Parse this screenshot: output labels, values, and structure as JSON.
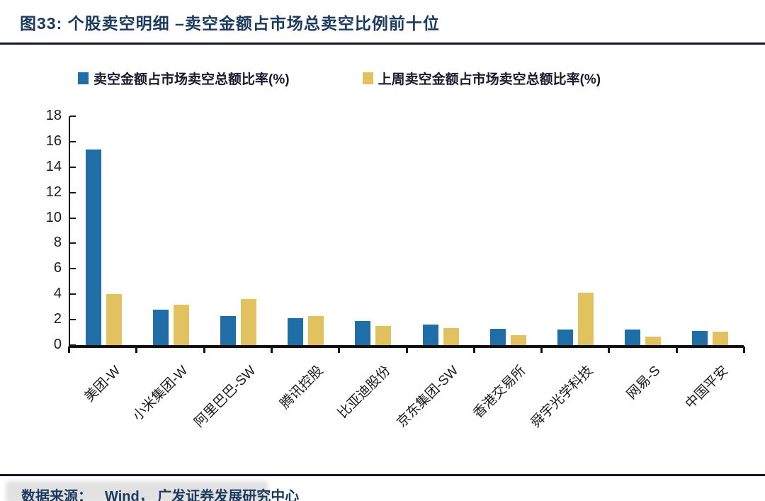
{
  "header": {
    "title": "图33:  个股卖空明细 –卖空金额占市场总卖空比例前十位"
  },
  "legend": [
    {
      "label": "卖空金额占市场卖空总额比率(%)",
      "color": "#1F6EA7"
    },
    {
      "label": "上周卖空金额占市场卖空总额比率(%)",
      "color": "#E2C25F"
    }
  ],
  "footer": {
    "source_label": "数据来源：",
    "source_text": "Wind， 广发证券发展研究中心"
  },
  "chart_data": {
    "type": "bar",
    "title": "个股卖空明细 –卖空金额占市场总卖空比例前十位",
    "categories": [
      "美团-W",
      "小米集团-W",
      "阿里巴巴-SW",
      "腾讯控股",
      "比亚迪股份",
      "京东集团-SW",
      "香港交易所",
      "舜宇光学科技",
      "网易-S",
      "中国平安"
    ],
    "series": [
      {
        "name": "卖空金额占市场卖空总额比率(%)",
        "color": "#1F6EA7",
        "values": [
          15.4,
          2.8,
          2.3,
          2.1,
          1.9,
          1.6,
          1.3,
          1.2,
          1.2,
          1.1
        ]
      },
      {
        "name": "上周卖空金额占市场卖空总额比率(%)",
        "color": "#E2C25F",
        "values": [
          4.0,
          3.2,
          3.6,
          2.3,
          1.5,
          1.35,
          0.8,
          4.1,
          0.65,
          1.05
        ]
      }
    ],
    "xlabel": "",
    "ylabel": "",
    "ylim": [
      0,
      18
    ],
    "ytick_step": 2,
    "grid": false,
    "legend_position": "top"
  }
}
